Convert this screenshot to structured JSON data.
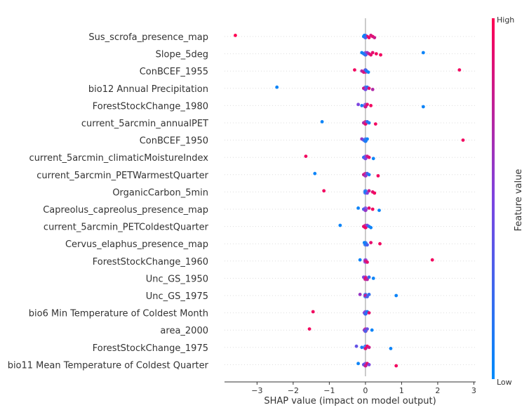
{
  "chart_data": {
    "type": "scatter",
    "subtype": "shap-beeswarm",
    "xlabel": "SHAP value (impact on model output)",
    "xlim": [
      -3.9,
      3.05
    ],
    "xticks": [
      -3,
      -2,
      -1,
      0,
      1,
      2,
      3
    ],
    "xtick_labels": [
      "−3",
      "−2",
      "−1",
      "0",
      "1",
      "2",
      "3"
    ],
    "colorbar": {
      "label": "Feature value",
      "high": "High",
      "low": "Low",
      "high_color": "#ff0052",
      "low_color": "#008bfb"
    },
    "features": [
      {
        "name": "Sus_scrofa_presence_map",
        "points": [
          [
            -3.6,
            1
          ],
          [
            0.05,
            0.9
          ],
          [
            0.1,
            0.95
          ],
          [
            0.15,
            0.85
          ],
          [
            0.2,
            0.9
          ],
          [
            0.25,
            0.8
          ],
          [
            -0.03,
            0.1
          ],
          [
            -0.05,
            0.05
          ],
          [
            0,
            0.3
          ]
        ]
      },
      {
        "name": "Slope_5deg",
        "points": [
          [
            -0.1,
            0.05
          ],
          [
            -0.05,
            0.1
          ],
          [
            0,
            0.2
          ],
          [
            0.05,
            0.6
          ],
          [
            0.1,
            0.8
          ],
          [
            0.15,
            0.9
          ],
          [
            0.2,
            0.9
          ],
          [
            0.3,
            0.95
          ],
          [
            0.42,
            0.95
          ],
          [
            1.6,
            0.05
          ]
        ]
      },
      {
        "name": "ConBCEF_1955",
        "points": [
          [
            -0.3,
            0.95
          ],
          [
            -0.1,
            0.7
          ],
          [
            -0.05,
            0.85
          ],
          [
            0,
            0.3
          ],
          [
            0.03,
            0.1
          ],
          [
            0.08,
            0.05
          ],
          [
            2.6,
            0.95
          ]
        ]
      },
      {
        "name": "bio12 Annual Precipitation",
        "points": [
          [
            -2.45,
            0.05
          ],
          [
            -0.05,
            0.8
          ],
          [
            0,
            0.5
          ],
          [
            0.05,
            0.2
          ],
          [
            0.1,
            0.9
          ],
          [
            0.2,
            0.7
          ]
        ]
      },
      {
        "name": "ForestStockChange_1980",
        "points": [
          [
            -0.2,
            0.5
          ],
          [
            -0.1,
            0.1
          ],
          [
            0,
            0.8
          ],
          [
            0.05,
            0.9
          ],
          [
            0.15,
            0.95
          ],
          [
            1.6,
            0.05
          ]
        ]
      },
      {
        "name": "current_5arcmin_annualPET",
        "points": [
          [
            -1.2,
            0.05
          ],
          [
            -0.05,
            0.7
          ],
          [
            0,
            0.9
          ],
          [
            0.05,
            0.2
          ],
          [
            0.1,
            0.1
          ],
          [
            0.28,
            0.95
          ]
        ]
      },
      {
        "name": "ConBCEF_1950",
        "points": [
          [
            -0.1,
            0.6
          ],
          [
            -0.05,
            0.3
          ],
          [
            0,
            0.1
          ],
          [
            0.05,
            0.05
          ],
          [
            2.7,
            0.95
          ]
        ]
      },
      {
        "name": "current_5arcmin_climaticMoistureIndex",
        "points": [
          [
            -1.65,
            0.95
          ],
          [
            -0.05,
            0.2
          ],
          [
            0,
            0.5
          ],
          [
            0.05,
            0.8
          ],
          [
            0.1,
            0.9
          ],
          [
            0.22,
            0.05
          ]
        ]
      },
      {
        "name": "current_5arcmin_PETWarmestQuarter",
        "points": [
          [
            -1.4,
            0.05
          ],
          [
            -0.05,
            0.8
          ],
          [
            0,
            0.6
          ],
          [
            0.05,
            0.3
          ],
          [
            0.1,
            0.1
          ],
          [
            0.35,
            0.95
          ]
        ]
      },
      {
        "name": "OrganicCarbon_5min",
        "points": [
          [
            -1.15,
            0.95
          ],
          [
            0,
            0.1
          ],
          [
            0.05,
            0.5
          ],
          [
            0.1,
            0.8
          ],
          [
            0.2,
            0.9
          ],
          [
            0.25,
            0.95
          ]
        ]
      },
      {
        "name": "Capreolus_capreolus_presence_map",
        "points": [
          [
            -0.2,
            0.05
          ],
          [
            -0.05,
            0.3
          ],
          [
            0,
            0.6
          ],
          [
            0.1,
            0.9
          ],
          [
            0.2,
            0.95
          ],
          [
            0.38,
            0.05
          ]
        ]
      },
      {
        "name": "current_5arcmin_PETColdestQuarter",
        "points": [
          [
            -0.7,
            0.05
          ],
          [
            -0.05,
            0.9
          ],
          [
            0,
            0.95
          ],
          [
            0.05,
            0.5
          ],
          [
            0.1,
            0.1
          ],
          [
            0.15,
            0.05
          ]
        ]
      },
      {
        "name": "Cervus_elaphus_presence_map",
        "points": [
          [
            -0.03,
            0.05
          ],
          [
            0,
            0.1
          ],
          [
            0.05,
            0.3
          ],
          [
            0.15,
            0.9
          ],
          [
            0.4,
            0.95
          ]
        ]
      },
      {
        "name": "ForestStockChange_1960",
        "points": [
          [
            -0.15,
            0.05
          ],
          [
            0,
            0.8
          ],
          [
            0.05,
            0.9
          ],
          [
            1.85,
            0.95
          ]
        ]
      },
      {
        "name": "Unc_GS_1950",
        "points": [
          [
            -0.05,
            0.5
          ],
          [
            0,
            0.9
          ],
          [
            0.05,
            0.7
          ],
          [
            0.1,
            0.2
          ],
          [
            0.22,
            0.05
          ]
        ]
      },
      {
        "name": "Unc_GS_1975",
        "points": [
          [
            -0.15,
            0.6
          ],
          [
            0,
            0.8
          ],
          [
            0.05,
            0.3
          ],
          [
            0.1,
            0.2
          ],
          [
            0.85,
            0.05
          ]
        ]
      },
      {
        "name": "bio6 Min Temperature of Coldest Month",
        "points": [
          [
            -1.45,
            0.95
          ],
          [
            -0.03,
            0.5
          ],
          [
            0,
            0.2
          ],
          [
            0.05,
            0.1
          ],
          [
            0.1,
            0.9
          ]
        ]
      },
      {
        "name": "area_2000",
        "points": [
          [
            -1.55,
            0.95
          ],
          [
            -0.03,
            0.6
          ],
          [
            0,
            0.3
          ],
          [
            0.05,
            0.4
          ],
          [
            0.18,
            0.05
          ]
        ]
      },
      {
        "name": "ForestStockChange_1975",
        "points": [
          [
            -0.25,
            0.4
          ],
          [
            -0.1,
            0.1
          ],
          [
            0,
            0.9
          ],
          [
            0.05,
            0.95
          ],
          [
            0.1,
            0.8
          ],
          [
            0.7,
            0.05
          ]
        ]
      },
      {
        "name": "bio11 Mean Temperature of Coldest Quarter",
        "points": [
          [
            -0.2,
            0.05
          ],
          [
            -0.05,
            0.4
          ],
          [
            0,
            0.8
          ],
          [
            0.05,
            0.9
          ],
          [
            0.1,
            0.5
          ],
          [
            0.85,
            0.95
          ]
        ]
      }
    ]
  }
}
